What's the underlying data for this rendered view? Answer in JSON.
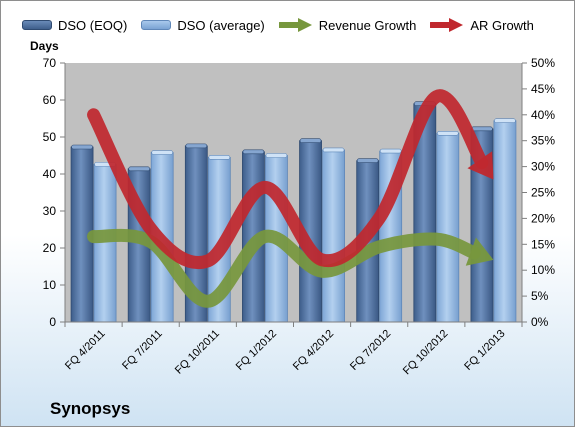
{
  "chart_data": {
    "type": "bar",
    "title": "",
    "company": "Synopsys",
    "ylabel": "Days",
    "ylim": [
      0,
      70
    ],
    "y_ticks": [
      0,
      10,
      20,
      30,
      40,
      50,
      60,
      70
    ],
    "y2lim": [
      0,
      50
    ],
    "y2_ticks": [
      "0%",
      "5%",
      "10%",
      "15%",
      "20%",
      "25%",
      "30%",
      "35%",
      "40%",
      "45%",
      "50%"
    ],
    "categories": [
      "FQ 4/2011",
      "FQ 7/2011",
      "FQ 10/2011",
      "FQ 1/2012",
      "FQ 4/2012",
      "FQ 7/2012",
      "FQ 10/2012",
      "FQ 1/2013"
    ],
    "series": [
      {
        "name": "DSO (EOQ)",
        "kind": "bar",
        "axis": "left",
        "color": "#4f6f9d",
        "values": [
          47.3,
          41.4,
          47.6,
          46.0,
          49.0,
          43.6,
          59.0,
          52.2
        ]
      },
      {
        "name": "DSO (average)",
        "kind": "bar",
        "axis": "left",
        "color": "#8db3df",
        "values": [
          42.6,
          45.8,
          44.5,
          45.0,
          46.5,
          46.2,
          51.0,
          54.4
        ]
      },
      {
        "name": "Revenue Growth",
        "kind": "line",
        "axis": "right",
        "unit": "%",
        "color": "#77973d",
        "values": [
          16.5,
          15.5,
          4.0,
          16.5,
          9.8,
          14.5,
          16.0,
          12.0
        ]
      },
      {
        "name": "AR Growth",
        "kind": "line",
        "axis": "right",
        "unit": "%",
        "color": "#c0282e",
        "values": [
          40.0,
          18.0,
          11.8,
          26.0,
          12.0,
          20.0,
          43.5,
          27.5
        ]
      }
    ],
    "grid": false,
    "legend": "top",
    "plot_background": "#c0c0c0"
  }
}
